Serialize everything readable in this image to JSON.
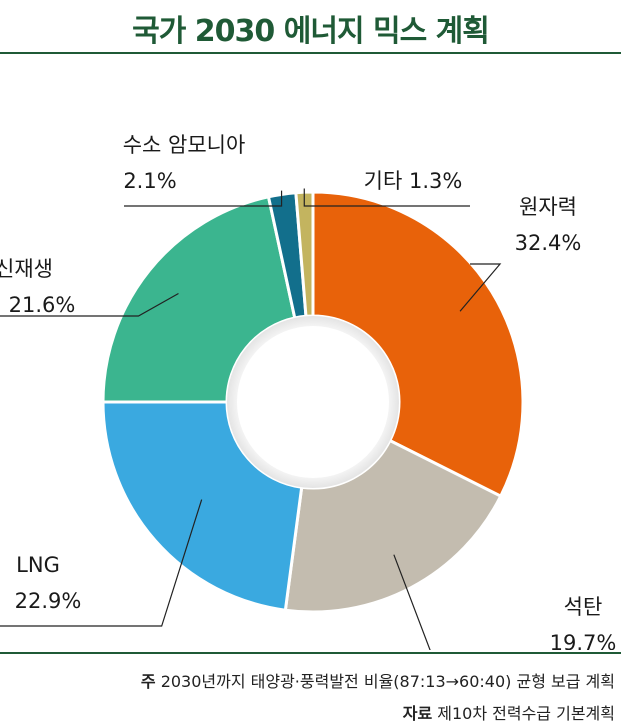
{
  "title": "국가 2030 에너지 믹스 계획",
  "chart_data": {
    "type": "pie",
    "donut": true,
    "title": "국가 2030 에너지 믹스 계획",
    "slices": [
      {
        "name": "원자력",
        "value": 32.4,
        "label": "32.4%",
        "color": "#e8620a"
      },
      {
        "name": "석탄",
        "value": 19.7,
        "label": "19.7%",
        "color": "#c3bcaf"
      },
      {
        "name": "LNG",
        "value": 22.9,
        "label": "22.9%",
        "color": "#3aa9e0"
      },
      {
        "name": "신재생",
        "value": 21.6,
        "label": "21.6%",
        "color": "#3bb58f"
      },
      {
        "name": "수소 암모니아",
        "value": 2.1,
        "label": "2.1%",
        "color": "#126f8c"
      },
      {
        "name": "기타",
        "value": 1.3,
        "label": "1.3%",
        "color": "#c3b45f"
      }
    ]
  },
  "notes": {
    "note1_prefix": "주",
    "note1_text": "2030년까지 태양광·풍력발전 비율(87:13→60:40) 균형 보급 계획",
    "note2_prefix": "자료",
    "note2_text": "제10차 전력수급 기본계획"
  }
}
